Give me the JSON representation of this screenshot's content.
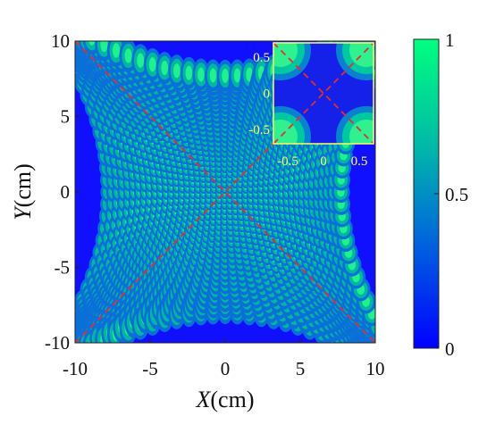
{
  "chart_data": {
    "type": "heatmap",
    "title": "",
    "xlabel": {
      "symbol": "X",
      "unit": "(cm)"
    },
    "ylabel": {
      "symbol": "Y",
      "unit": "(cm)"
    },
    "xlim": [
      -10,
      10
    ],
    "ylim": [
      -10,
      10
    ],
    "xticks": [
      -10,
      -5,
      0,
      5,
      10
    ],
    "yticks": [
      -10,
      -5,
      0,
      5,
      10
    ],
    "xtick_labels": [
      "-10",
      "-5",
      "0",
      "5",
      "10"
    ],
    "ytick_labels": [
      "-10",
      "-5",
      "0",
      "5",
      "10"
    ],
    "colorbar": {
      "range": [
        0,
        1
      ],
      "ticks": [
        0,
        0.5,
        1
      ],
      "tick_labels": [
        "0",
        "0.5",
        "1"
      ],
      "colormap": [
        "#0000ff",
        "#00c0a0",
        "#00ff80"
      ]
    },
    "guide_lines": {
      "color": "#e03030",
      "style": "dashed",
      "description": "diagonals y=x and y=-x"
    },
    "inset": {
      "xlim": [
        -0.7,
        0.7
      ],
      "ylim": [
        -0.7,
        0.7
      ],
      "xticks": [
        -0.5,
        0,
        0.5
      ],
      "yticks": [
        -0.5,
        0,
        0.5
      ],
      "xtick_labels": [
        "-0.5",
        "0",
        "0.5"
      ],
      "ytick_labels": [
        "-0.5",
        "0",
        "0.5"
      ],
      "frame_color": "#ffff66"
    }
  }
}
